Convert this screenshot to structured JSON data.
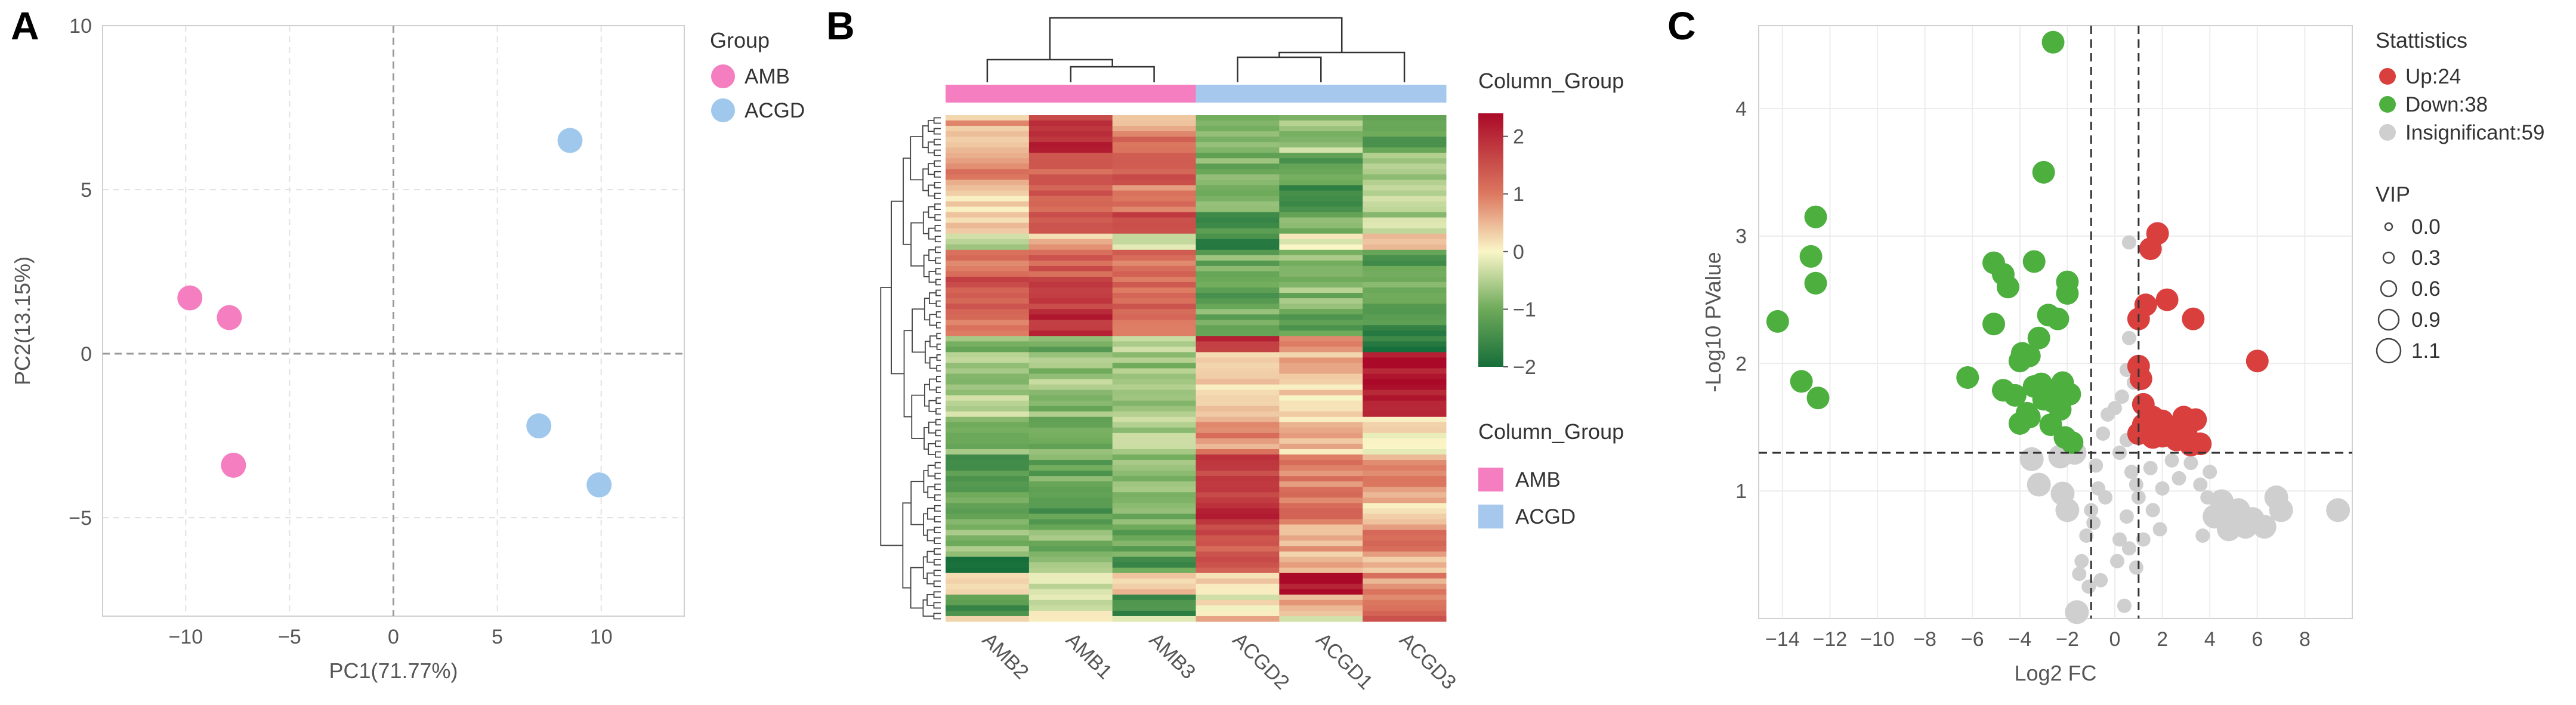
{
  "chart_data": [
    {
      "panel": "A",
      "type": "scatter",
      "xlabel": "PC1(71.77%)",
      "ylabel": "PC2(13.15%)",
      "xlim": [
        -14,
        14
      ],
      "ylim": [
        -8,
        10
      ],
      "xticks": [
        -10,
        -5,
        0,
        5,
        10
      ],
      "yticks": [
        -5,
        0,
        5,
        10
      ],
      "xtick_labels": [
        "−10",
        "−5",
        "0",
        "5",
        "10"
      ],
      "ytick_labels": [
        "−5",
        "0",
        "5",
        "10"
      ],
      "legend_title": "Group",
      "series": [
        {
          "name": "AMB",
          "color": "#f47ec0",
          "points": [
            [
              -9.8,
              1.7
            ],
            [
              -7.9,
              1.1
            ],
            [
              -7.7,
              -3.4
            ]
          ]
        },
        {
          "name": "ACGD",
          "color": "#9fc8ec",
          "points": [
            [
              8.5,
              6.5
            ],
            [
              7.0,
              -2.2
            ],
            [
              9.9,
              -4.0
            ]
          ]
        }
      ]
    },
    {
      "panel": "B",
      "type": "heatmap",
      "columns": [
        "AMB2",
        "AMB1",
        "AMB3",
        "ACGD2",
        "ACGD1",
        "ACGD3"
      ],
      "column_groups": [
        "AMB",
        "AMB",
        "AMB",
        "ACGD",
        "ACGD",
        "ACGD"
      ],
      "group_colors": {
        "AMB": "#f47ec0",
        "ACGD": "#a5c8ec"
      },
      "colorbar_title": "Column_Group",
      "colorbar_ticks": [
        2,
        1,
        0,
        -1,
        -2
      ],
      "colorbar_tick_labels": [
        "2",
        "1",
        "0",
        "−1",
        "−2"
      ],
      "colorbar_range": [
        -2,
        2.4
      ],
      "legend_title": "Column_Group",
      "legend_items": [
        "AMB",
        "ACGD"
      ],
      "n_rows": 100,
      "row_blocks": [
        {
          "rows": 3,
          "values": [
            0.6,
            1.8,
            0.7,
            -0.8,
            -0.7,
            -0.8
          ]
        },
        {
          "rows": 4,
          "values": [
            0.4,
            2.0,
            1.0,
            -1.0,
            -0.6,
            -1.2
          ]
        },
        {
          "rows": 6,
          "values": [
            0.8,
            1.4,
            1.3,
            -0.9,
            -1.1,
            -0.8
          ]
        },
        {
          "rows": 5,
          "values": [
            0.1,
            1.3,
            0.9,
            -0.7,
            -1.4,
            -0.4
          ]
        },
        {
          "rows": 4,
          "values": [
            0.3,
            1.2,
            1.5,
            -1.3,
            -1.0,
            -0.5
          ]
        },
        {
          "rows": 3,
          "values": [
            -0.4,
            0.5,
            -0.1,
            -1.6,
            -0.2,
            0.3
          ]
        },
        {
          "rows": 5,
          "values": [
            1.2,
            1.3,
            1.1,
            -1.0,
            -0.9,
            -1.3
          ]
        },
        {
          "rows": 6,
          "values": [
            1.4,
            1.8,
            1.3,
            -1.2,
            -0.8,
            -1.1
          ]
        },
        {
          "rows": 5,
          "values": [
            0.9,
            1.9,
            1.0,
            -1.0,
            -1.2,
            -1.5
          ]
        },
        {
          "rows": 3,
          "values": [
            -0.9,
            -1.0,
            -0.3,
            2.0,
            0.9,
            -1.8
          ]
        },
        {
          "rows": 6,
          "values": [
            -0.6,
            -0.7,
            -0.8,
            0.4,
            0.5,
            2.3
          ]
        },
        {
          "rows": 6,
          "values": [
            -0.5,
            -0.8,
            -0.6,
            0.2,
            0.3,
            2.1
          ]
        },
        {
          "rows": 7,
          "values": [
            -0.8,
            -1.0,
            -0.6,
            0.8,
            0.4,
            0.2
          ]
        },
        {
          "rows": 7,
          "values": [
            -1.2,
            -1.1,
            -0.8,
            1.6,
            0.9,
            0.7
          ]
        },
        {
          "rows": 6,
          "values": [
            -0.9,
            -1.2,
            -1.0,
            1.9,
            1.1,
            0.4
          ]
        },
        {
          "rows": 6,
          "values": [
            -0.7,
            -0.9,
            -1.1,
            1.5,
            0.6,
            0.9
          ]
        },
        {
          "rows": 3,
          "values": [
            -1.8,
            -0.7,
            -1.3,
            1.4,
            0.7,
            0.5
          ]
        },
        {
          "rows": 4,
          "values": [
            0.3,
            -0.2,
            0.2,
            0.1,
            2.2,
            0.8
          ]
        },
        {
          "rows": 4,
          "values": [
            -1.4,
            -0.2,
            -1.5,
            0.0,
            0.5,
            1.1
          ]
        },
        {
          "rows": 1,
          "values": [
            0.1,
            0.0,
            -0.3,
            0.5,
            0.0,
            1.7
          ]
        }
      ]
    },
    {
      "panel": "C",
      "type": "scatter",
      "subtype": "volcano",
      "xlabel": "Log2 FC",
      "ylabel": "-Log10 PValue",
      "xlim": [
        -15,
        10
      ],
      "ylim": [
        0,
        4.65
      ],
      "xticks": [
        -14,
        -12,
        -10,
        -8,
        -6,
        -4,
        -2,
        0,
        2,
        4,
        6,
        8
      ],
      "yticks": [
        1,
        2,
        3,
        4
      ],
      "xtick_labels": [
        "−14",
        "−12",
        "−10",
        "−8",
        "−6",
        "−4",
        "−2",
        "0",
        "2",
        "4",
        "6",
        "8"
      ],
      "ytick_labels": [
        "1",
        "2",
        "3",
        "4"
      ],
      "thresholds": {
        "fc": [
          -1,
          1
        ],
        "pvalue": 1.3
      },
      "legend_title": "Stattistics",
      "legend_items": [
        {
          "label": "Up:24",
          "color": "#d93f3d"
        },
        {
          "label": "Down:38",
          "color": "#4caf3e"
        },
        {
          "label": "Insignificant:59",
          "color": "#cfcfcf"
        }
      ],
      "vip_title": "VIP",
      "vip_labels": [
        "0.0",
        "0.3",
        "0.6",
        "0.9",
        "1.1"
      ],
      "up_color": "#d93f3d",
      "down_color": "#4caf3e",
      "insig_color": "#cfcfcf",
      "up": [
        [
          6.0,
          2.02
        ],
        [
          3.3,
          2.35
        ],
        [
          2.2,
          2.5
        ],
        [
          1.8,
          3.02
        ],
        [
          1.5,
          2.9
        ],
        [
          1.3,
          2.46
        ],
        [
          1.0,
          2.35
        ],
        [
          1.0,
          1.98
        ],
        [
          1.1,
          1.88
        ],
        [
          1.2,
          1.68
        ],
        [
          1.0,
          1.45
        ],
        [
          1.6,
          1.58
        ],
        [
          1.4,
          1.48
        ],
        [
          2.0,
          1.55
        ],
        [
          2.0,
          1.43
        ],
        [
          2.6,
          1.4
        ],
        [
          2.9,
          1.58
        ],
        [
          3.4,
          1.56
        ],
        [
          3.0,
          1.46
        ],
        [
          3.6,
          1.37
        ],
        [
          3.2,
          1.36
        ],
        [
          1.6,
          1.42
        ],
        [
          2.4,
          1.5
        ],
        [
          1.2,
          1.52
        ]
      ],
      "down": [
        [
          -2.6,
          4.52
        ],
        [
          -3.0,
          3.5
        ],
        [
          -12.6,
          3.15
        ],
        [
          -12.8,
          2.84
        ],
        [
          -12.6,
          2.63
        ],
        [
          -14.2,
          2.33
        ],
        [
          -13.2,
          1.86
        ],
        [
          -12.5,
          1.73
        ],
        [
          -5.1,
          2.79
        ],
        [
          -4.7,
          2.7
        ],
        [
          -4.5,
          2.6
        ],
        [
          -3.4,
          2.8
        ],
        [
          -2.0,
          2.64
        ],
        [
          -2.0,
          2.55
        ],
        [
          -5.1,
          2.31
        ],
        [
          -2.8,
          2.38
        ],
        [
          -2.4,
          2.35
        ],
        [
          -3.2,
          2.2
        ],
        [
          -3.9,
          2.08
        ],
        [
          -3.6,
          2.06
        ],
        [
          -4.0,
          2.02
        ],
        [
          -6.2,
          1.89
        ],
        [
          -4.7,
          1.79
        ],
        [
          -3.1,
          1.84
        ],
        [
          -2.2,
          1.85
        ],
        [
          -2.8,
          1.75
        ],
        [
          -3.4,
          1.82
        ],
        [
          -4.2,
          1.75
        ],
        [
          -3.0,
          1.72
        ],
        [
          -2.6,
          1.7
        ],
        [
          -1.9,
          1.76
        ],
        [
          -2.3,
          1.64
        ],
        [
          -3.6,
          1.58
        ],
        [
          -4.0,
          1.53
        ],
        [
          -2.7,
          1.52
        ],
        [
          -2.1,
          1.42
        ],
        [
          -1.8,
          1.38
        ],
        [
          -3.7,
          1.61
        ]
      ],
      "insignificant": [
        [
          0.6,
          2.95
        ],
        [
          0.6,
          2.2
        ],
        [
          0.5,
          1.95
        ],
        [
          0.3,
          1.74
        ],
        [
          0.0,
          1.65
        ],
        [
          0.8,
          1.85
        ],
        [
          0.5,
          1.4
        ],
        [
          0.2,
          1.3
        ],
        [
          0.7,
          1.15
        ],
        [
          0.9,
          1.05
        ],
        [
          1.0,
          0.95
        ],
        [
          0.5,
          0.8
        ],
        [
          0.2,
          0.62
        ],
        [
          0.6,
          0.55
        ],
        [
          0.9,
          0.4
        ],
        [
          -0.3,
          1.6
        ],
        [
          -0.5,
          1.45
        ],
        [
          -0.8,
          1.2
        ],
        [
          -0.7,
          1.02
        ],
        [
          -1.0,
          0.85
        ],
        [
          -1.2,
          0.65
        ],
        [
          -1.4,
          0.45
        ],
        [
          -1.5,
          0.35
        ],
        [
          -0.4,
          0.95
        ],
        [
          -0.9,
          0.75
        ],
        [
          -2.3,
          1.27
        ],
        [
          -3.5,
          1.25
        ],
        [
          -2.2,
          0.98
        ],
        [
          -1.7,
          1.3
        ],
        [
          -3.2,
          1.05
        ],
        [
          -2.0,
          0.85
        ],
        [
          1.5,
          1.18
        ],
        [
          2.0,
          1.02
        ],
        [
          2.4,
          1.24
        ],
        [
          2.7,
          1.1
        ],
        [
          3.2,
          1.22
        ],
        [
          3.6,
          1.05
        ],
        [
          4.0,
          1.15
        ],
        [
          3.9,
          0.95
        ],
        [
          4.2,
          0.8
        ],
        [
          4.6,
          0.78
        ],
        [
          4.8,
          0.7
        ],
        [
          5.2,
          0.85
        ],
        [
          5.5,
          0.72
        ],
        [
          6.3,
          0.72
        ],
        [
          6.8,
          0.95
        ],
        [
          7.0,
          0.85
        ],
        [
          9.4,
          0.85
        ],
        [
          4.5,
          0.92
        ],
        [
          3.7,
          0.65
        ],
        [
          5.8,
          0.78
        ],
        [
          1.9,
          0.7
        ],
        [
          1.6,
          0.85
        ],
        [
          -1.1,
          0.25
        ],
        [
          -1.6,
          0.05
        ],
        [
          0.4,
          0.1
        ],
        [
          -0.6,
          0.3
        ],
        [
          0.1,
          0.45
        ],
        [
          1.2,
          0.62
        ]
      ]
    }
  ]
}
